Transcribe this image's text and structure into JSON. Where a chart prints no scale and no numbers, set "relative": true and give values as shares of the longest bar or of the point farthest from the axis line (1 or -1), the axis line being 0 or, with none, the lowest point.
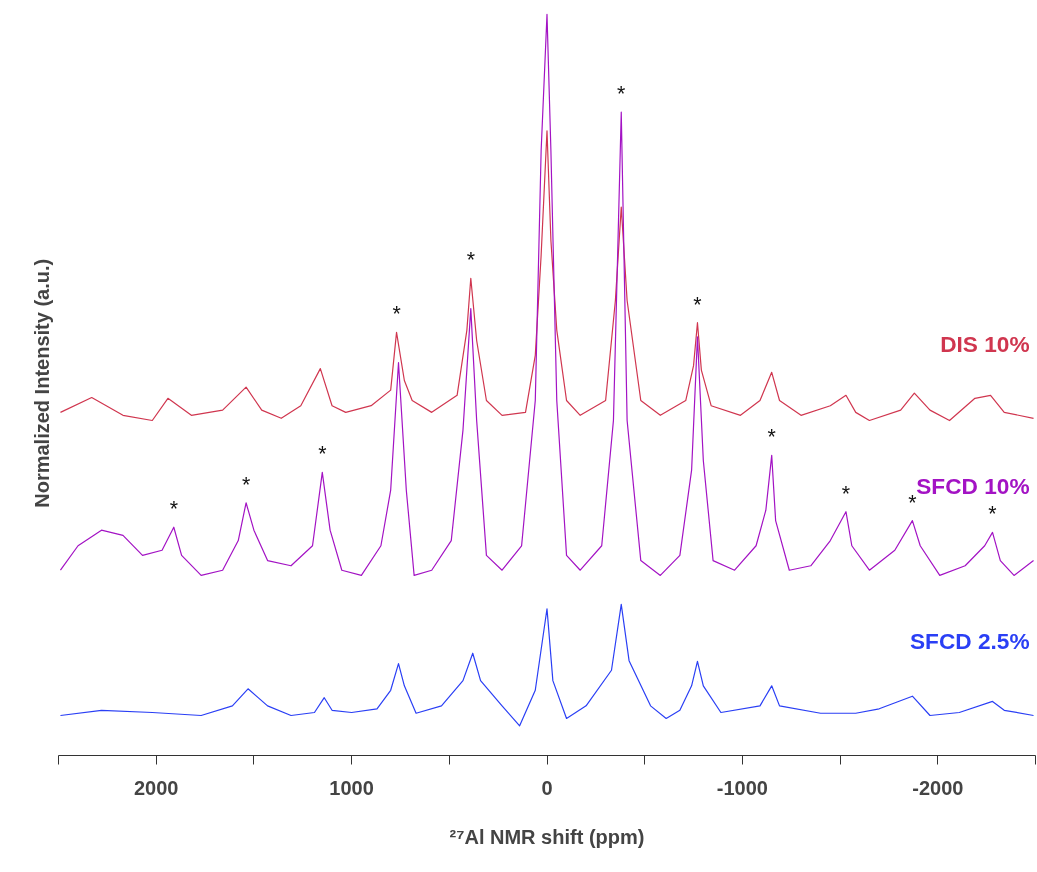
{
  "chart_data": {
    "type": "line",
    "relative": true,
    "xlabel": "²⁷Al NMR shift (ppm)",
    "ylabel": "Normalized Intensity  (a.u.)",
    "xlim": [
      2500,
      -2500
    ],
    "xticks": [
      {
        "value": 2500,
        "label": null
      },
      2000,
      {
        "value": 1500,
        "label": null
      },
      1000,
      {
        "value": 500,
        "label": null
      },
      0,
      {
        "value": -500,
        "label": null
      },
      -1000,
      {
        "value": -1500,
        "label": null
      },
      -2000,
      {
        "value": -2500,
        "label": null
      }
    ],
    "grid": false,
    "marker": "none",
    "line_style": "solid",
    "series": [
      {
        "name": "DIS 10%",
        "color": "#d0364f",
        "x": [
          2490,
          2330,
          2170,
          2020,
          1940,
          1820,
          1660,
          1540,
          1460,
          1360,
          1260,
          1160,
          1100,
          1030,
          900,
          800,
          770,
          730,
          690,
          590,
          460,
          410,
          390,
          360,
          310,
          230,
          110,
          60,
          30,
          0,
          -20,
          -50,
          -100,
          -170,
          -300,
          -350,
          -380,
          -410,
          -480,
          -580,
          -710,
          -750,
          -770,
          -790,
          -840,
          -990,
          -1090,
          -1150,
          -1190,
          -1300,
          -1450,
          -1530,
          -1580,
          -1650,
          -1810,
          -1880,
          -1960,
          -2060,
          -2190,
          -2270,
          -2340,
          -2490
        ],
        "values": [
          0.463,
          0.483,
          0.459,
          0.452,
          0.482,
          0.459,
          0.466,
          0.497,
          0.466,
          0.455,
          0.472,
          0.522,
          0.472,
          0.463,
          0.472,
          0.493,
          0.571,
          0.506,
          0.479,
          0.463,
          0.486,
          0.574,
          0.644,
          0.56,
          0.479,
          0.459,
          0.463,
          0.54,
          0.675,
          0.843,
          0.695,
          0.574,
          0.479,
          0.459,
          0.479,
          0.614,
          0.74,
          0.614,
          0.479,
          0.459,
          0.479,
          0.526,
          0.584,
          0.52,
          0.472,
          0.459,
          0.479,
          0.517,
          0.479,
          0.459,
          0.472,
          0.486,
          0.463,
          0.452,
          0.466,
          0.489,
          0.466,
          0.452,
          0.482,
          0.486,
          0.463,
          0.455
        ]
      },
      {
        "name": "SFCD 10%",
        "color": "#a313c4",
        "x": [
          2490,
          2400,
          2280,
          2170,
          2070,
          1970,
          1910,
          1870,
          1770,
          1660,
          1580,
          1540,
          1500,
          1430,
          1310,
          1200,
          1150,
          1110,
          1050,
          950,
          850,
          800,
          760,
          720,
          680,
          590,
          490,
          430,
          390,
          360,
          310,
          230,
          130,
          60,
          30,
          0,
          -20,
          -50,
          -100,
          -170,
          -280,
          -340,
          -380,
          -410,
          -480,
          -580,
          -680,
          -740,
          -770,
          -800,
          -850,
          -960,
          -1070,
          -1120,
          -1150,
          -1170,
          -1240,
          -1350,
          -1450,
          -1530,
          -1560,
          -1650,
          -1780,
          -1870,
          -1910,
          -2010,
          -2140,
          -2240,
          -2280,
          -2320,
          -2390,
          -2490
        ],
        "values": [
          0.25,
          0.283,
          0.304,
          0.297,
          0.27,
          0.277,
          0.308,
          0.27,
          0.243,
          0.25,
          0.29,
          0.341,
          0.304,
          0.263,
          0.256,
          0.283,
          0.382,
          0.304,
          0.25,
          0.243,
          0.283,
          0.358,
          0.53,
          0.358,
          0.243,
          0.25,
          0.29,
          0.439,
          0.603,
          0.452,
          0.27,
          0.25,
          0.283,
          0.479,
          0.816,
          1,
          0.816,
          0.479,
          0.27,
          0.25,
          0.283,
          0.452,
          0.868,
          0.452,
          0.263,
          0.243,
          0.27,
          0.385,
          0.565,
          0.398,
          0.263,
          0.25,
          0.283,
          0.331,
          0.405,
          0.317,
          0.25,
          0.256,
          0.29,
          0.329,
          0.283,
          0.25,
          0.277,
          0.317,
          0.283,
          0.243,
          0.256,
          0.283,
          0.301,
          0.263,
          0.243,
          0.263
        ]
      },
      {
        "name": "SFCD 2.5%",
        "color": "#2a3ff5",
        "x": [
          2490,
          2280,
          2020,
          1770,
          1610,
          1530,
          1430,
          1310,
          1190,
          1140,
          1100,
          1000,
          870,
          800,
          760,
          730,
          670,
          540,
          430,
          380,
          340,
          230,
          140,
          60,
          0,
          -30,
          -100,
          -200,
          -330,
          -380,
          -420,
          -530,
          -610,
          -680,
          -740,
          -770,
          -800,
          -890,
          -1090,
          -1150,
          -1190,
          -1400,
          -1580,
          -1700,
          -1870,
          -1960,
          -2110,
          -2280,
          -2340,
          -2490
        ],
        "values": [
          0.054,
          0.061,
          0.058,
          0.054,
          0.067,
          0.09,
          0.067,
          0.054,
          0.058,
          0.078,
          0.061,
          0.058,
          0.063,
          0.088,
          0.124,
          0.094,
          0.057,
          0.067,
          0.101,
          0.138,
          0.101,
          0.067,
          0.04,
          0.088,
          0.198,
          0.101,
          0.05,
          0.067,
          0.115,
          0.204,
          0.128,
          0.067,
          0.05,
          0.061,
          0.094,
          0.127,
          0.094,
          0.058,
          0.067,
          0.094,
          0.067,
          0.057,
          0.057,
          0.063,
          0.08,
          0.054,
          0.058,
          0.073,
          0.061,
          0.054
        ]
      }
    ],
    "annotations": [
      {
        "text": "*",
        "x": 1910,
        "y": 0.308
      },
      {
        "text": "*",
        "x": 1540,
        "y": 0.341
      },
      {
        "text": "*",
        "x": 1150,
        "y": 0.382
      },
      {
        "text": "*",
        "x": 770,
        "y": 0.571
      },
      {
        "text": "*",
        "x": 390,
        "y": 0.644
      },
      {
        "text": "*",
        "x": -380,
        "y": 0.868
      },
      {
        "text": "*",
        "x": -770,
        "y": 0.584
      },
      {
        "text": "*",
        "x": -1150,
        "y": 0.405
      },
      {
        "text": "*",
        "x": -1530,
        "y": 0.329
      },
      {
        "text": "*",
        "x": -1870,
        "y": 0.317
      },
      {
        "text": "*",
        "x": -2280,
        "y": 0.301
      }
    ]
  }
}
